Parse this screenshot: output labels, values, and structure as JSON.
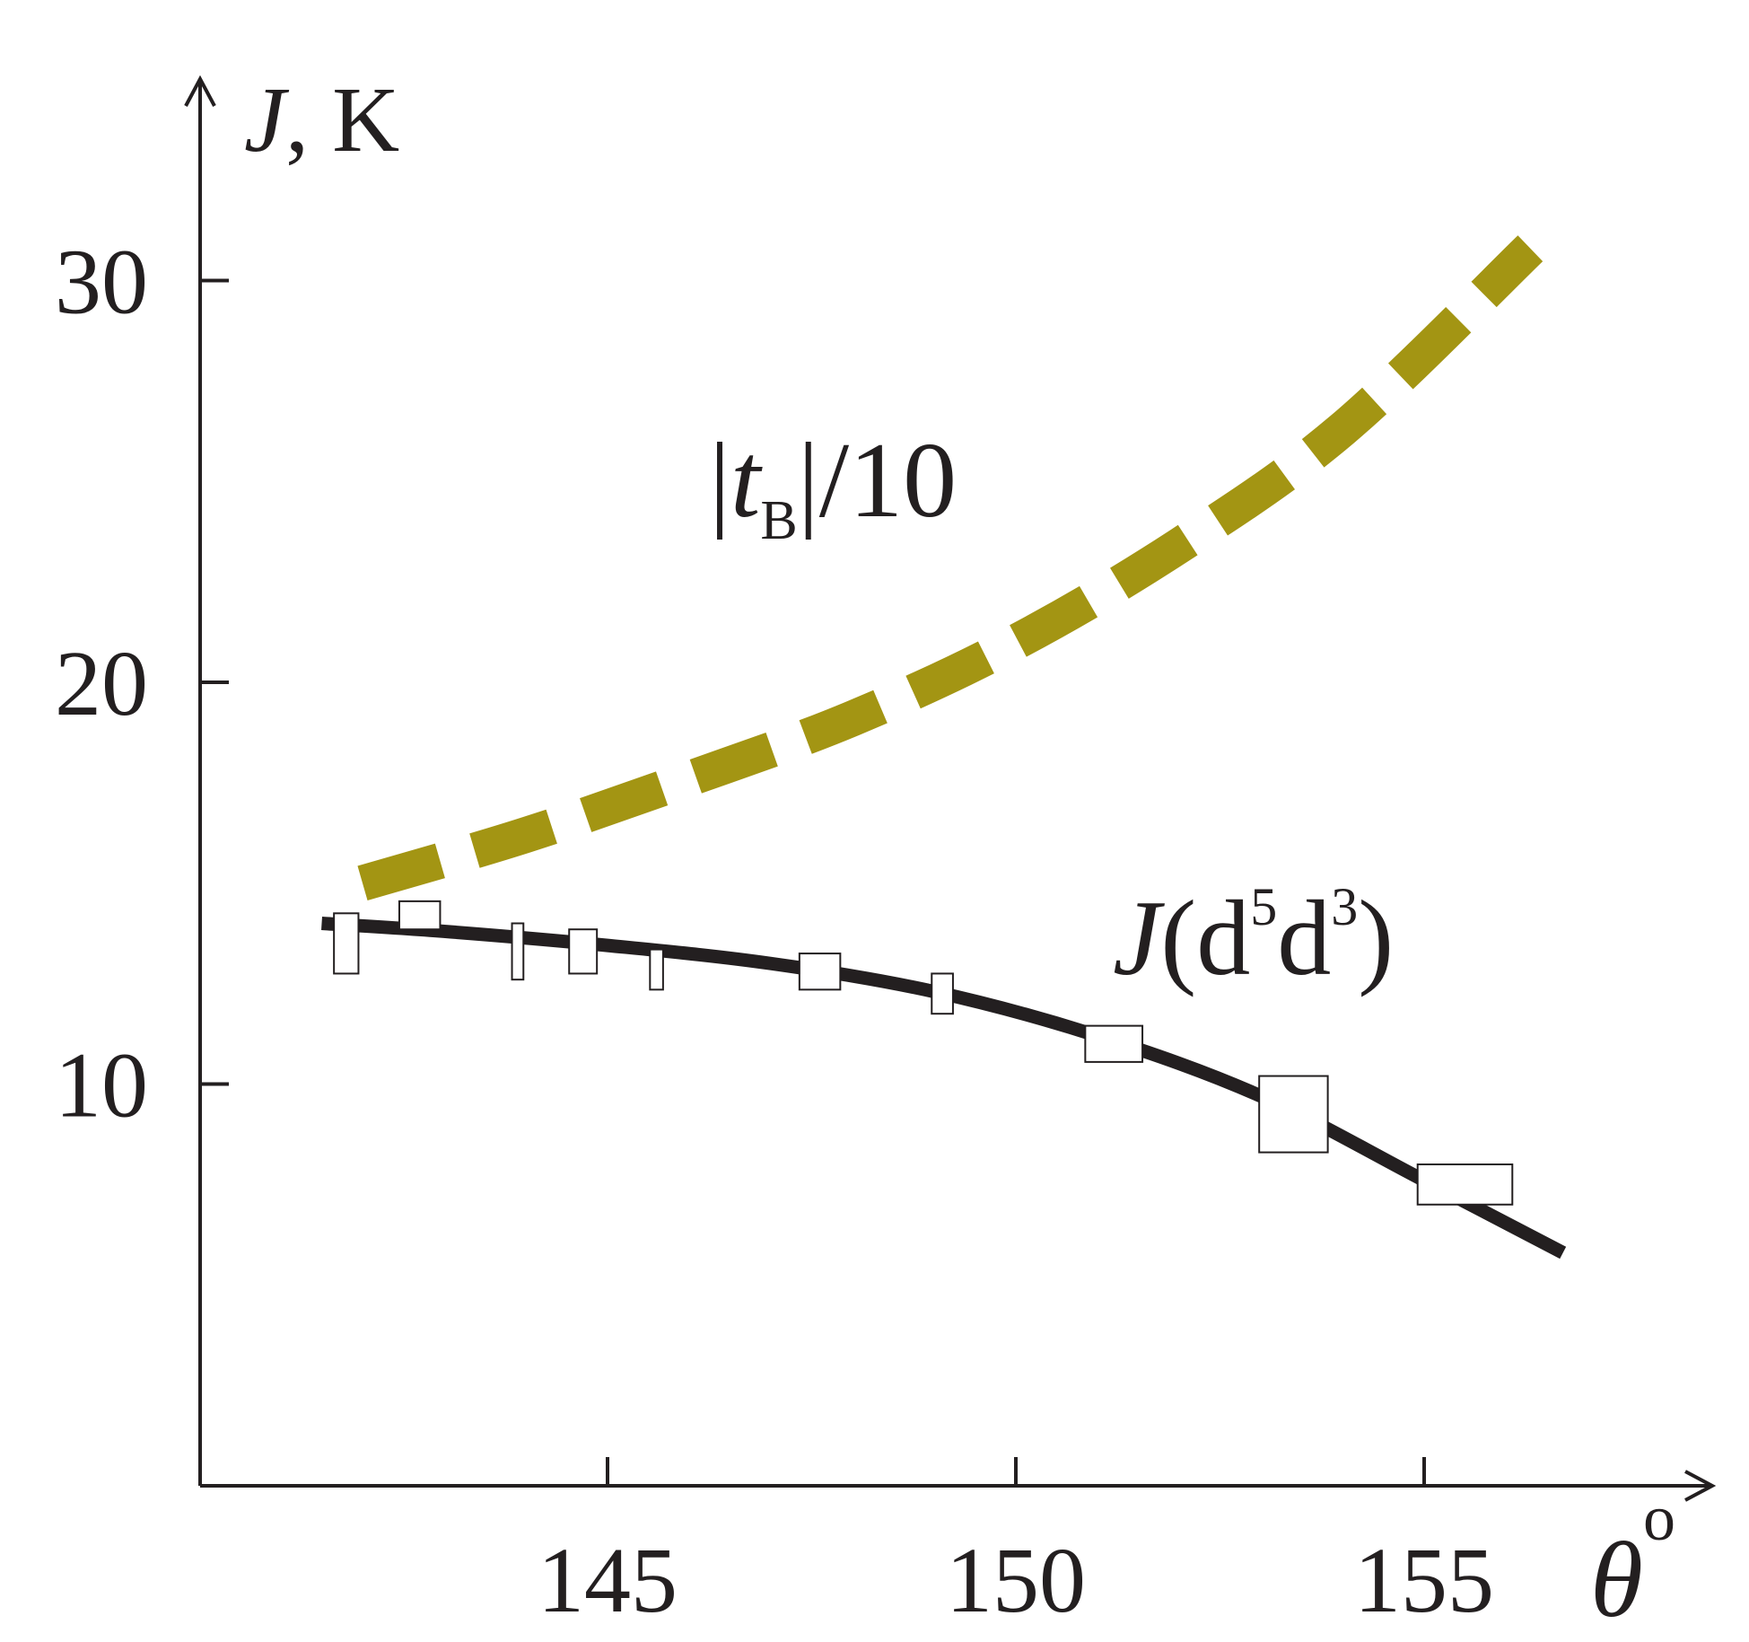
{
  "chart_data": {
    "type": "line",
    "xlim": [
      140,
      157.5
    ],
    "ylim": [
      0,
      34
    ],
    "x_ticks": [
      145,
      150,
      155
    ],
    "y_ticks": [
      10,
      20,
      30
    ],
    "x_tick_labels": [
      "145",
      "150",
      "155"
    ],
    "y_tick_labels": [
      "10",
      "20",
      "30"
    ],
    "axis_label_y": {
      "symbol": "J",
      "unit": ", K"
    },
    "axis_label_x": {
      "symbol": "θ",
      "unit": "o"
    },
    "grid": false,
    "colors": {
      "axis": "#231f20",
      "fit_line": "#231f20",
      "dashed_line": "#a39513",
      "markers_fill": "#ffffff"
    },
    "series": [
      {
        "name": "J(d5d3)",
        "label": {
          "prefix": "J",
          "open": "(d",
          "sup1": "5",
          "mid": "d",
          "sup2": "3",
          "close": ")"
        },
        "style": "solid",
        "fit_line": [
          [
            141.5,
            14.0
          ],
          [
            143,
            13.8
          ],
          [
            145,
            13.45
          ],
          [
            147,
            13.0
          ],
          [
            149,
            12.3
          ],
          [
            151,
            11.2
          ],
          [
            153,
            9.7
          ],
          [
            155,
            7.6
          ],
          [
            156.7,
            5.8
          ]
        ],
        "points": [
          {
            "x": 141.8,
            "y": 13.5,
            "xerr": 0.15,
            "yerr": 0.75
          },
          {
            "x": 142.7,
            "y": 14.2,
            "xerr": 0.25,
            "yerr": 0.35
          },
          {
            "x": 143.9,
            "y": 13.3,
            "xerr": 0.07,
            "yerr": 0.7
          },
          {
            "x": 144.7,
            "y": 13.3,
            "xerr": 0.17,
            "yerr": 0.55
          },
          {
            "x": 145.6,
            "y": 12.85,
            "xerr": 0.08,
            "yerr": 0.5
          },
          {
            "x": 147.6,
            "y": 12.8,
            "xerr": 0.25,
            "yerr": 0.45
          },
          {
            "x": 149.1,
            "y": 12.25,
            "xerr": 0.13,
            "yerr": 0.5
          },
          {
            "x": 151.2,
            "y": 11.0,
            "xerr": 0.35,
            "yerr": 0.45
          },
          {
            "x": 153.4,
            "y": 9.25,
            "xerr": 0.42,
            "yerr": 0.95
          },
          {
            "x": 155.5,
            "y": 7.5,
            "xerr": 0.58,
            "yerr": 0.5
          }
        ]
      },
      {
        "name": "|tB|/10",
        "label": {
          "bar1": "|",
          "t": "t",
          "sub": "B",
          "rest": "|/10"
        },
        "style": "dashed",
        "x": [
          142,
          144,
          146,
          148,
          150,
          152,
          154,
          156.3
        ],
        "y": [
          15.0,
          16.2,
          17.6,
          19.1,
          21.0,
          23.4,
          26.3,
          30.8
        ]
      }
    ]
  }
}
